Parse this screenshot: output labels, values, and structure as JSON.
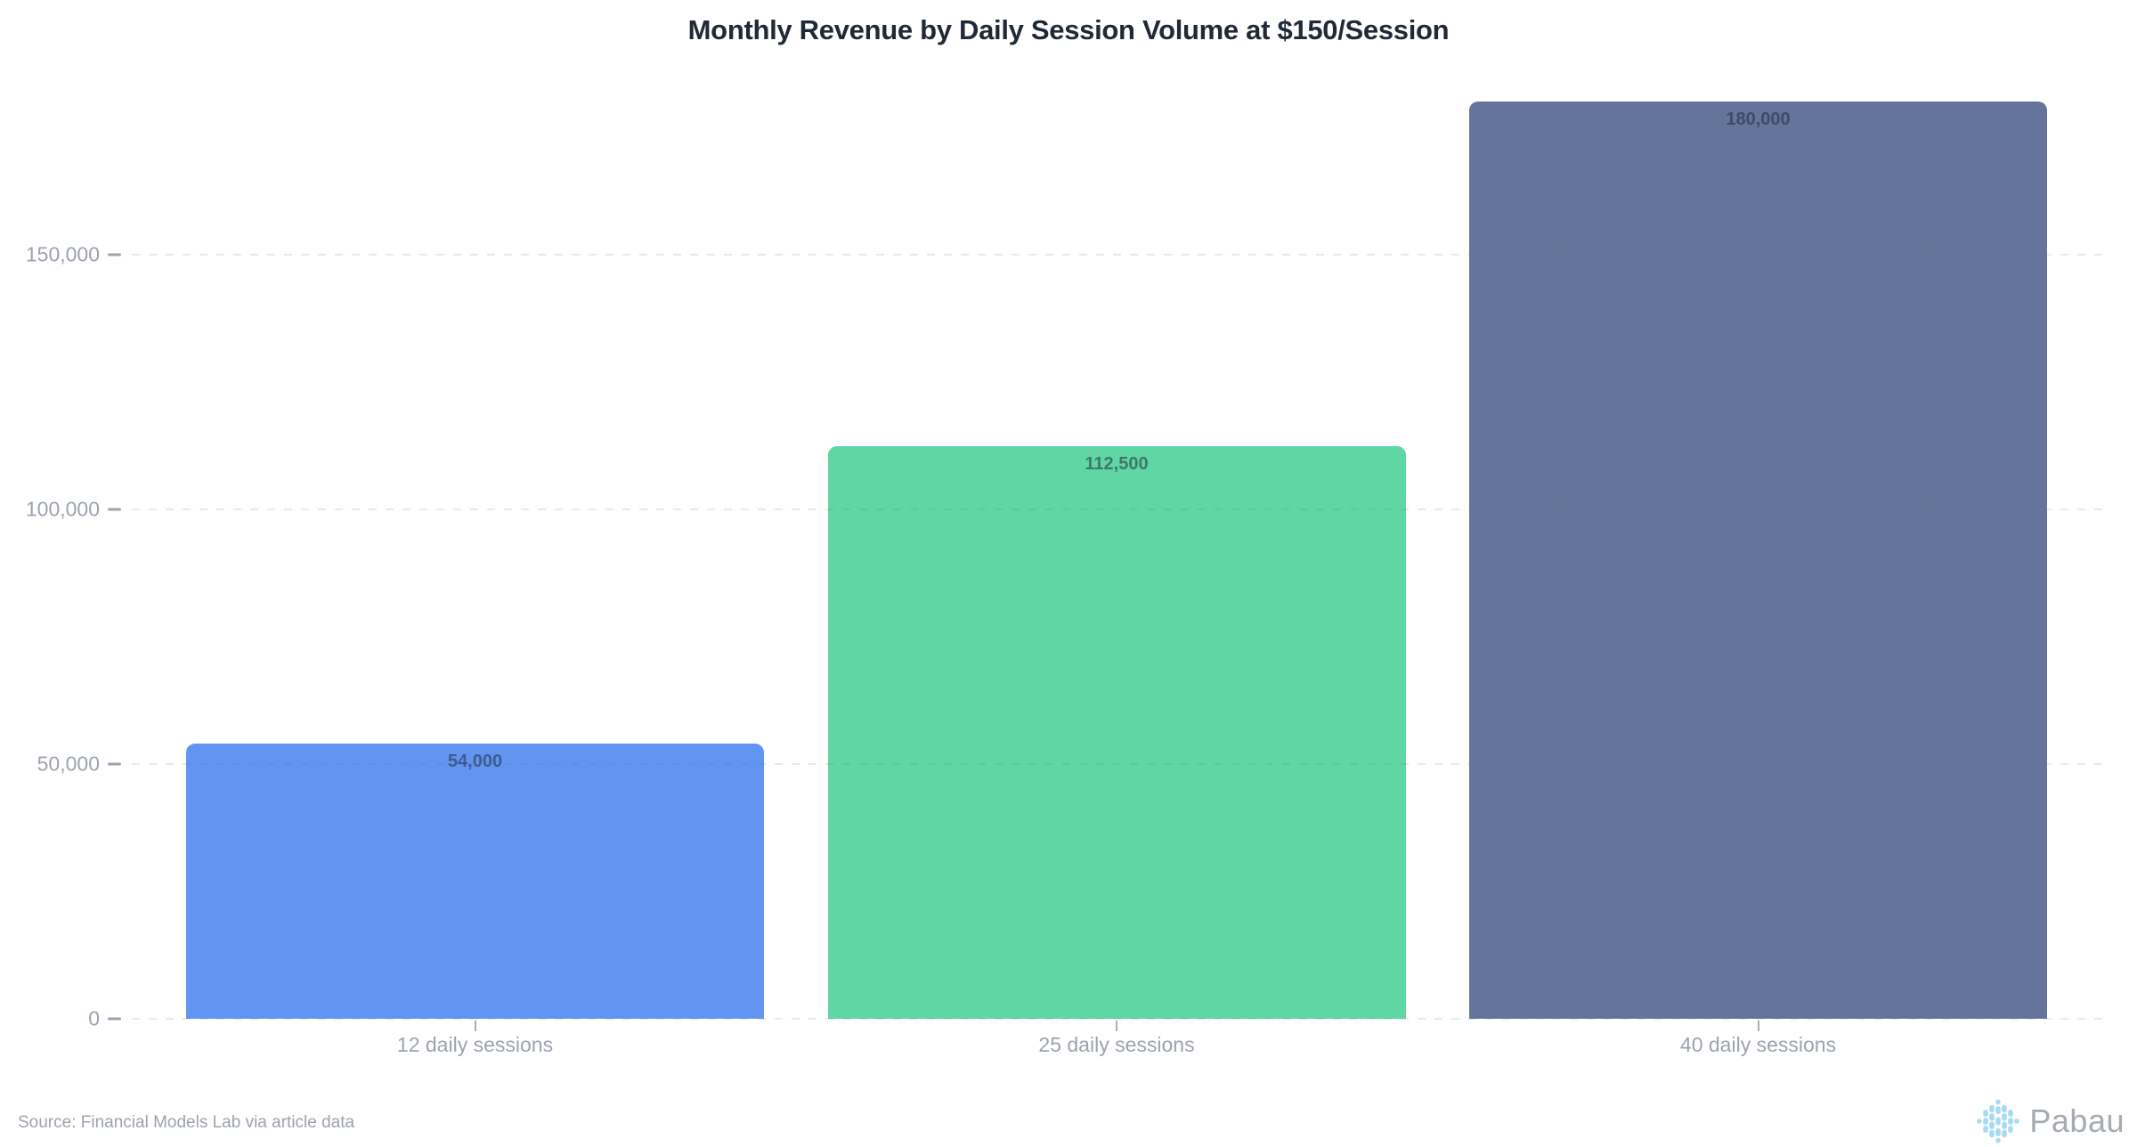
{
  "title": "Monthly Revenue by Daily Session Volume at $150/Session",
  "source_note": "Source: Financial Models Lab via article data",
  "branding": {
    "logo_text": "Pabau",
    "logo_icon": "pabau-dots-icon",
    "logo_icon_color": "#A7DBF2",
    "logo_text_color": "#A6ABB1"
  },
  "colors": {
    "title_text": "#1F2937",
    "axis_text": "#9CA3AF",
    "gridline": "#E9EBEE",
    "value_label": "rgba(33,44,60,0.55)"
  },
  "chart_data": {
    "type": "bar",
    "title": "Monthly Revenue by Daily Session Volume at $150/Session",
    "categories": [
      "12 daily sessions",
      "25 daily sessions",
      "40 daily sessions"
    ],
    "values": [
      54000,
      112500,
      180000
    ],
    "value_labels": [
      "54,000",
      "112,500",
      "180,000"
    ],
    "bar_colors": [
      "#6295F1",
      "#60D6A4",
      "#65749B"
    ],
    "xlabel": "",
    "ylabel": "",
    "ylim": [
      0,
      200000
    ],
    "ytick_values": [
      0,
      50000,
      100000,
      150000
    ],
    "ytick_labels": [
      "0",
      "50,000",
      "100,000",
      "150,000"
    ],
    "grid": "horizontal-dashed-over-bars",
    "legend": "none"
  }
}
